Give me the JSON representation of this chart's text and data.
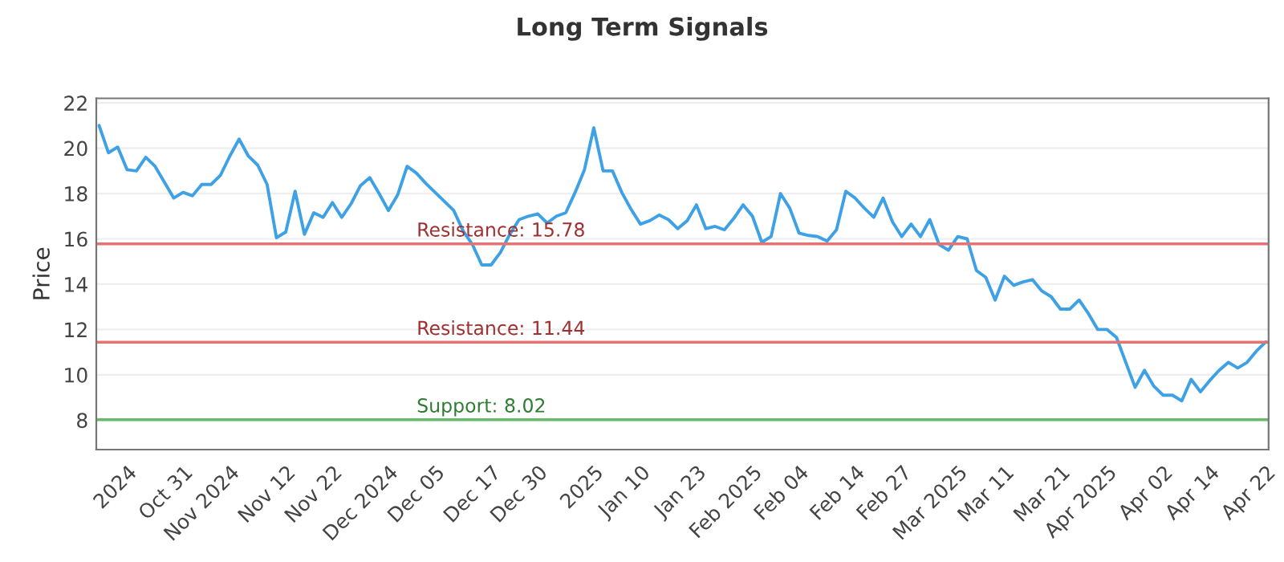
{
  "chart_data": {
    "type": "line",
    "title": "Long Term Signals",
    "ylabel": "Price",
    "categories": [
      null,
      null,
      null,
      "2024",
      null,
      null,
      null,
      null,
      null,
      "Oct 31",
      null,
      null,
      null,
      null,
      "Nov 2024",
      null,
      null,
      null,
      null,
      null,
      "Nov 12",
      null,
      null,
      null,
      null,
      "Nov 22",
      null,
      null,
      null,
      null,
      null,
      "Dec 2024",
      null,
      null,
      null,
      null,
      "Dec 05",
      null,
      null,
      null,
      null,
      null,
      "Dec 17",
      null,
      null,
      null,
      null,
      "Dec 30",
      null,
      null,
      null,
      null,
      null,
      "2025",
      null,
      null,
      null,
      null,
      "Jan 10",
      null,
      null,
      null,
      null,
      null,
      "Jan 23",
      null,
      null,
      null,
      null,
      null,
      "Feb 2025",
      null,
      null,
      null,
      null,
      "Feb 04",
      null,
      null,
      null,
      null,
      null,
      "Feb 14",
      null,
      null,
      null,
      null,
      "Feb 27",
      null,
      null,
      null,
      null,
      null,
      "Mar 2025",
      null,
      null,
      null,
      null,
      "Mar 11",
      null,
      null,
      null,
      null,
      null,
      "Mar 21",
      null,
      null,
      null,
      null,
      "Apr 2025",
      null,
      null,
      null,
      null,
      null,
      "Apr 02",
      null,
      null,
      null,
      null,
      "Apr 14",
      null,
      null,
      null,
      null,
      null,
      "Apr 22"
    ],
    "series": [
      {
        "color": "#3ea1e6",
        "values": [
          21.0,
          19.8,
          20.05,
          19.05,
          19.0,
          19.6,
          19.2,
          18.5,
          17.8,
          18.05,
          17.9,
          18.4,
          18.4,
          18.8,
          19.65,
          20.4,
          19.65,
          19.25,
          18.4,
          16.05,
          16.3,
          18.1,
          16.2,
          17.15,
          16.95,
          17.6,
          16.95,
          17.55,
          18.35,
          18.7,
          18.0,
          17.25,
          17.95,
          19.2,
          18.9,
          18.45,
          18.05,
          17.65,
          17.25,
          16.35,
          15.75,
          14.85,
          14.85,
          15.4,
          16.2,
          16.85,
          17.0,
          17.1,
          16.7,
          17.0,
          17.15,
          18.05,
          19.05,
          20.9,
          19.0,
          19.0,
          18.05,
          17.3,
          16.65,
          16.8,
          17.05,
          16.85,
          16.45,
          16.8,
          17.5,
          16.45,
          16.55,
          16.4,
          16.9,
          17.5,
          17.0,
          15.85,
          16.1,
          18.0,
          17.35,
          16.25,
          16.15,
          16.1,
          15.9,
          16.4,
          18.1,
          17.8,
          17.35,
          16.95,
          17.8,
          16.75,
          16.1,
          16.65,
          16.1,
          16.85,
          15.75,
          15.5,
          16.1,
          16.0,
          14.6,
          14.3,
          13.3,
          14.35,
          13.95,
          14.1,
          14.2,
          13.7,
          13.45,
          12.9,
          12.9,
          13.3,
          12.7,
          12.0,
          12.0,
          11.65,
          10.55,
          9.45,
          10.2,
          9.5,
          9.1,
          9.1,
          8.85,
          9.8,
          9.25,
          9.75,
          10.2,
          10.55,
          10.3,
          10.55,
          11.05,
          11.45
        ]
      }
    ],
    "ylim": [
      6.7,
      22.2
    ],
    "yticks": [
      8,
      10,
      12,
      14,
      16,
      18,
      20,
      22
    ],
    "grid": "y",
    "ref_lines": [
      {
        "axis": "y",
        "value": 15.78,
        "label": "Resistance: 15.78",
        "color": "#e57373"
      },
      {
        "axis": "y",
        "value": 11.44,
        "label": "Resistance: 11.44",
        "color": "#e57373"
      },
      {
        "axis": "y",
        "value": 8.02,
        "label": "Support: 8.02",
        "color": "#66bb6a"
      }
    ]
  }
}
